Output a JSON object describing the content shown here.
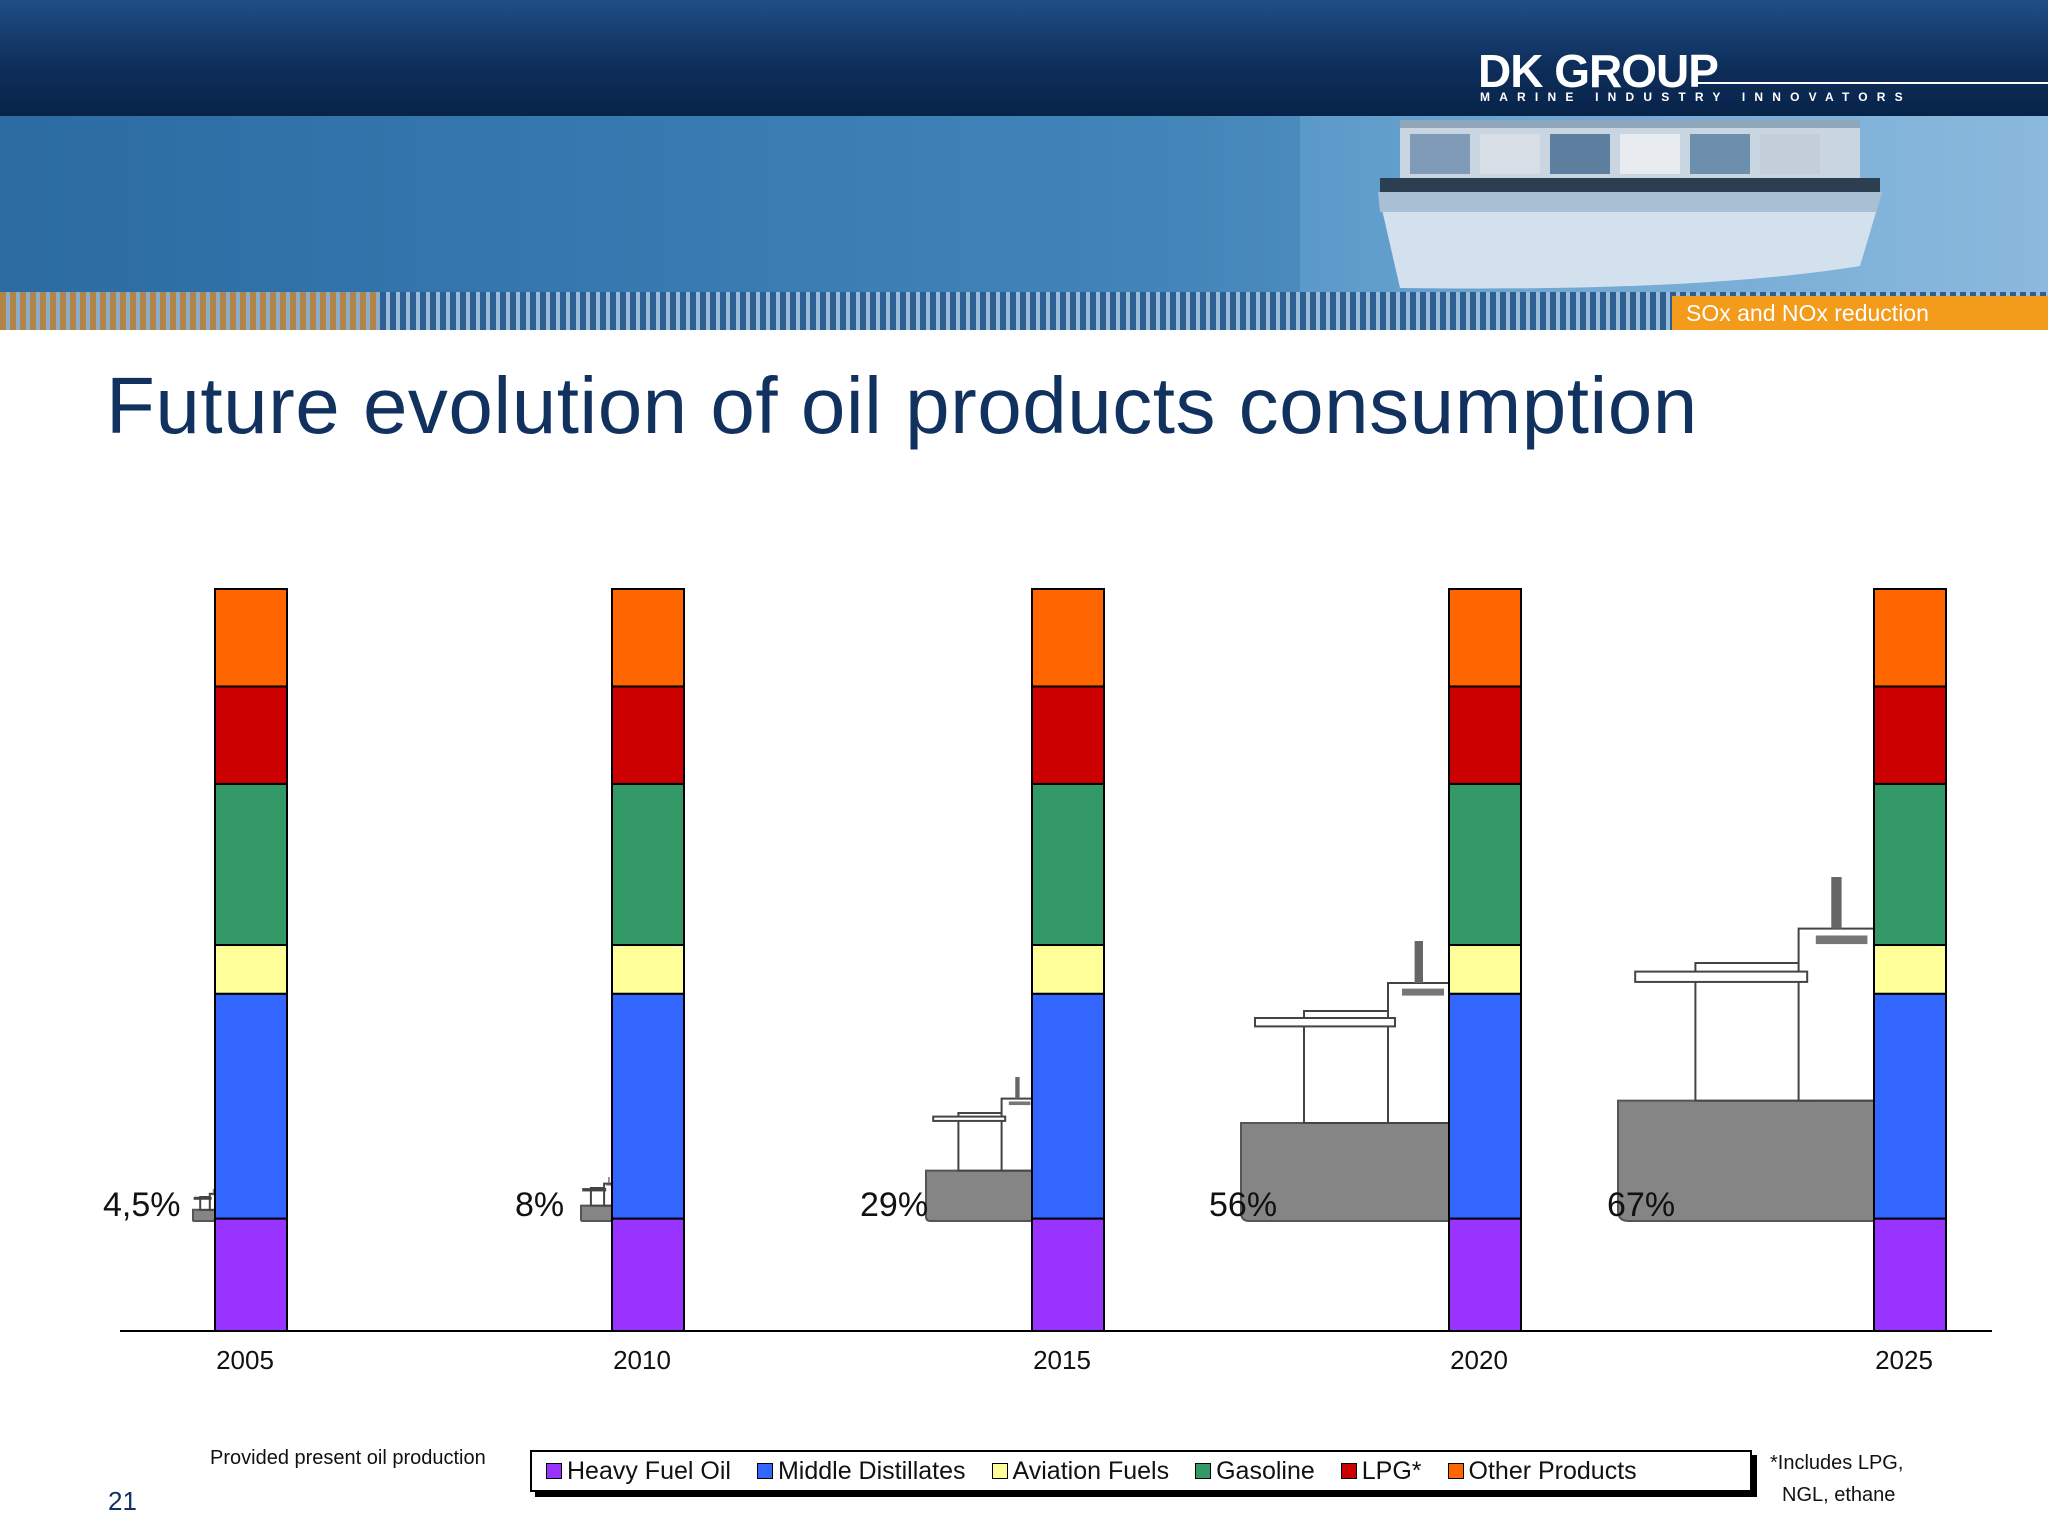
{
  "header": {
    "logo_text": "DK GROUP",
    "logo_tagline": "MARINE INDUSTRY INNOVATORS",
    "section_tag": "SOx and NOx reduction"
  },
  "title": "Future evolution of oil products consumption",
  "colors": {
    "heavy_fuel_oil": "#9933ff",
    "middle_distillates": "#3366ff",
    "aviation_fuels": "#ffff99",
    "gasoline": "#339966",
    "lpg": "#cc0000",
    "other_products": "#ff6600",
    "ship": "#858585",
    "title": "#11325f",
    "tag": "#f39b1a"
  },
  "chart_data": {
    "type": "bar",
    "stacked": true,
    "categories": [
      "2005",
      "2010",
      "2015",
      "2020",
      "2025"
    ],
    "series": [
      {
        "name": "Heavy Fuel Oil",
        "values": [
          15,
          15,
          15,
          15,
          15
        ]
      },
      {
        "name": "Middle Distillates",
        "values": [
          30,
          30,
          30,
          30,
          30
        ]
      },
      {
        "name": "Aviation Fuels",
        "values": [
          6.5,
          6.5,
          6.5,
          6.5,
          6.5
        ]
      },
      {
        "name": "Gasoline",
        "values": [
          21.5,
          21.5,
          21.5,
          21.5,
          21.5
        ]
      },
      {
        "name": "LPG*",
        "values": [
          13,
          13,
          13,
          13,
          13
        ]
      },
      {
        "name": "Other Products",
        "values": [
          13,
          13,
          13,
          13,
          13
        ]
      }
    ],
    "annotations": [
      "4,5%",
      "8%",
      "29%",
      "56%",
      "67%"
    ],
    "legend_position": "bottom",
    "grid": false
  },
  "footnotes": {
    "left": "Provided present oil production",
    "right_line1": "*Includes LPG,",
    "right_line2": "NGL, ethane"
  },
  "page_number": "21"
}
